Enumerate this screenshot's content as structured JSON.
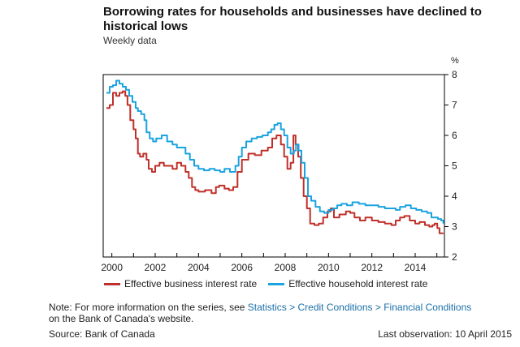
{
  "header": {
    "title": "Borrowing rates for households and businesses have declined to historical lows",
    "subtitle": "Weekly data"
  },
  "footer": {
    "note_prefix": "Note: For more information on the series, see ",
    "note_link1": "Statistics",
    "note_sep1": " > ",
    "note_link2": "Credit Conditions",
    "note_sep2": " > ",
    "note_link3": "Financial Conditions",
    "note_suffix": " on the Bank of Canada's website.",
    "source": "Source: Bank of Canada",
    "last_observation": "Last observation: 10 April 2015"
  },
  "colors": {
    "business": "#c0302a",
    "household": "#1aa3e0",
    "axis": "#000000"
  },
  "chart_data": {
    "type": "line",
    "title": "Borrowing rates for households and businesses have declined to historical lows",
    "subtitle": "Weekly data",
    "xlabel": "",
    "ylabel": "%",
    "xlim": [
      1999.6,
      2015.35
    ],
    "ylim": [
      2,
      8
    ],
    "x_ticks": [
      "2000",
      "2002",
      "2004",
      "2006",
      "2008",
      "2010",
      "2012",
      "2014"
    ],
    "y_ticks": [
      "2",
      "3",
      "4",
      "5",
      "6",
      "7",
      "8"
    ],
    "legend_position": "bottom",
    "series": [
      {
        "name": "Effective business interest rate",
        "color": "#c0302a",
        "x": [
          1999.75,
          1999.9,
          2000.05,
          2000.2,
          2000.35,
          2000.5,
          2000.62,
          2000.72,
          2000.85,
          2001.0,
          2001.1,
          2001.2,
          2001.3,
          2001.45,
          2001.6,
          2001.7,
          2001.85,
          2002.0,
          2002.2,
          2002.4,
          2002.6,
          2002.8,
          2003.0,
          2003.2,
          2003.4,
          2003.55,
          2003.7,
          2003.85,
          2004.0,
          2004.3,
          2004.6,
          2004.8,
          2004.95,
          2005.2,
          2005.4,
          2005.6,
          2005.8,
          2006.0,
          2006.3,
          2006.6,
          2006.9,
          2007.2,
          2007.4,
          2007.6,
          2007.8,
          2007.95,
          2008.1,
          2008.25,
          2008.38,
          2008.48,
          2008.6,
          2008.72,
          2008.85,
          2009.0,
          2009.15,
          2009.35,
          2009.55,
          2009.75,
          2009.95,
          2010.1,
          2010.25,
          2010.5,
          2010.8,
          2011.0,
          2011.2,
          2011.45,
          2011.7,
          2012.0,
          2012.3,
          2012.6,
          2012.9,
          2013.1,
          2013.3,
          2013.5,
          2013.75,
          2014.0,
          2014.2,
          2014.45,
          2014.65,
          2014.8,
          2014.9,
          2015.02,
          2015.12,
          2015.28
        ],
        "values": [
          6.9,
          7.0,
          7.4,
          7.3,
          7.4,
          7.45,
          7.3,
          7.0,
          6.5,
          6.2,
          5.9,
          5.4,
          5.3,
          5.4,
          5.2,
          4.9,
          4.8,
          5.0,
          5.1,
          5.0,
          5.0,
          4.9,
          5.1,
          5.0,
          4.8,
          4.6,
          4.3,
          4.2,
          4.15,
          4.2,
          4.1,
          4.3,
          4.35,
          4.25,
          4.2,
          4.3,
          4.8,
          5.2,
          5.4,
          5.35,
          5.5,
          5.6,
          5.9,
          6.0,
          5.7,
          5.3,
          4.9,
          5.1,
          6.0,
          5.7,
          5.3,
          4.6,
          4.0,
          3.6,
          3.1,
          3.05,
          3.1,
          3.3,
          3.5,
          3.6,
          3.3,
          3.4,
          3.5,
          3.45,
          3.3,
          3.2,
          3.3,
          3.2,
          3.15,
          3.1,
          3.05,
          3.2,
          3.3,
          3.35,
          3.2,
          3.1,
          3.15,
          3.05,
          3.0,
          3.05,
          3.1,
          2.95,
          2.78,
          2.76
        ]
      },
      {
        "name": "Effective household interest rate",
        "color": "#1aa3e0",
        "x": [
          1999.75,
          1999.9,
          2000.05,
          2000.2,
          2000.35,
          2000.5,
          2000.65,
          2000.8,
          2000.95,
          2001.1,
          2001.2,
          2001.35,
          2001.5,
          2001.6,
          2001.75,
          2001.9,
          2002.05,
          2002.3,
          2002.55,
          2002.8,
          2003.0,
          2003.2,
          2003.4,
          2003.6,
          2003.8,
          2004.0,
          2004.25,
          2004.5,
          2004.75,
          2005.0,
          2005.2,
          2005.45,
          2005.7,
          2005.85,
          2006.0,
          2006.2,
          2006.45,
          2006.7,
          2006.95,
          2007.2,
          2007.35,
          2007.5,
          2007.65,
          2007.8,
          2007.95,
          2008.1,
          2008.25,
          2008.4,
          2008.5,
          2008.62,
          2008.75,
          2008.9,
          2009.05,
          2009.2,
          2009.4,
          2009.6,
          2009.8,
          2010.0,
          2010.2,
          2010.4,
          2010.6,
          2010.85,
          2011.1,
          2011.4,
          2011.7,
          2012.0,
          2012.3,
          2012.6,
          2012.9,
          2013.1,
          2013.3,
          2013.55,
          2013.8,
          2014.05,
          2014.3,
          2014.55,
          2014.75,
          2014.9,
          2015.05,
          2015.2,
          2015.3
        ],
        "values": [
          7.4,
          7.6,
          7.65,
          7.8,
          7.7,
          7.6,
          7.5,
          7.3,
          7.1,
          6.9,
          6.8,
          6.7,
          6.5,
          6.1,
          5.9,
          5.8,
          5.9,
          6.0,
          5.8,
          5.7,
          5.6,
          5.6,
          5.4,
          5.2,
          5.0,
          4.9,
          4.85,
          4.9,
          4.85,
          4.8,
          4.9,
          4.8,
          5.0,
          5.3,
          5.6,
          5.8,
          5.9,
          5.95,
          6.0,
          6.1,
          6.2,
          6.35,
          6.4,
          6.2,
          6.0,
          5.6,
          5.4,
          5.5,
          5.7,
          5.5,
          5.1,
          4.6,
          4.0,
          3.85,
          3.65,
          3.5,
          3.45,
          3.55,
          3.6,
          3.7,
          3.75,
          3.7,
          3.8,
          3.75,
          3.7,
          3.7,
          3.65,
          3.6,
          3.6,
          3.55,
          3.65,
          3.7,
          3.6,
          3.55,
          3.5,
          3.45,
          3.3,
          3.3,
          3.25,
          3.2,
          3.1
        ]
      }
    ]
  }
}
